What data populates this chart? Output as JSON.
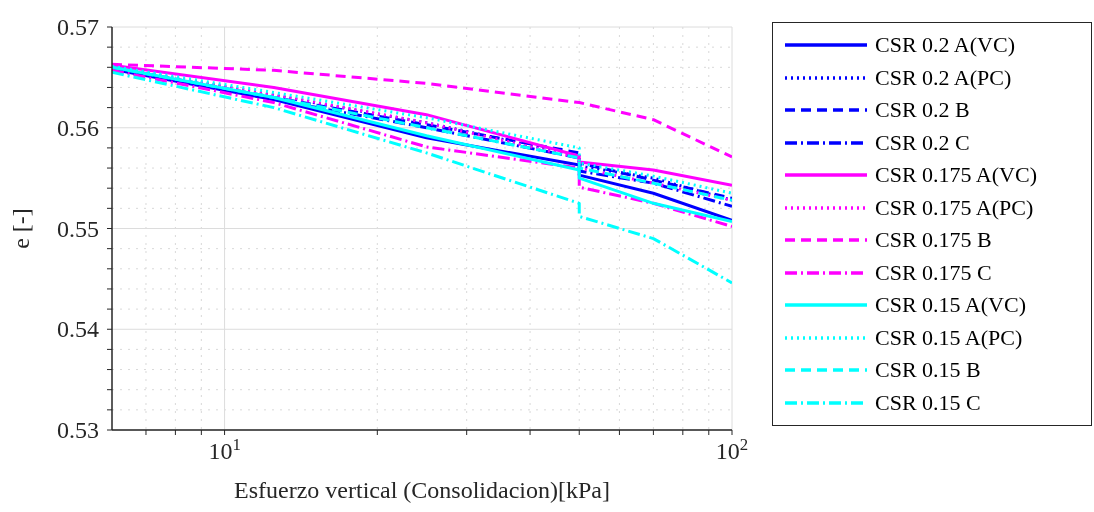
{
  "chart_data": {
    "type": "line",
    "xlabel": "Esfuerzo vertical (Consolidacion)[kPa]",
    "ylabel": "e [-]",
    "log": "x",
    "xlim": [
      6,
      100
    ],
    "ylim": [
      0.53,
      0.57
    ],
    "xticks": [
      {
        "value": 7,
        "label": null
      },
      {
        "value": 8,
        "label": null
      },
      {
        "value": 9,
        "label": null
      },
      {
        "value": 10,
        "label": "10$^{1}$"
      },
      {
        "value": 20,
        "label": null
      },
      {
        "value": 30,
        "label": null
      },
      {
        "value": 40,
        "label": null
      },
      {
        "value": 50,
        "label": null
      },
      {
        "value": 60,
        "label": null
      },
      {
        "value": 70,
        "label": null
      },
      {
        "value": 80,
        "label": null
      },
      {
        "value": 90,
        "label": null
      },
      {
        "value": 100,
        "label": "10$^{2}$"
      }
    ],
    "yticks": [
      0.53,
      {
        "value": 0.532,
        "label": null
      },
      {
        "value": 0.534,
        "label": null
      },
      {
        "value": 0.536,
        "label": null
      },
      {
        "value": 0.538,
        "label": null
      },
      0.54,
      {
        "value": 0.542,
        "label": null
      },
      {
        "value": 0.544,
        "label": null
      },
      {
        "value": 0.546,
        "label": null
      },
      {
        "value": 0.548,
        "label": null
      },
      0.55,
      {
        "value": 0.552,
        "label": null
      },
      {
        "value": 0.554,
        "label": null
      },
      {
        "value": 0.556,
        "label": null
      },
      {
        "value": 0.558,
        "label": null
      },
      0.56,
      {
        "value": 0.562,
        "label": null
      },
      {
        "value": 0.564,
        "label": null
      },
      {
        "value": 0.566,
        "label": null
      },
      {
        "value": 0.568,
        "label": null
      },
      0.57
    ],
    "grid": true,
    "legend": "right",
    "marker": "none",
    "x": [
      6,
      12.5,
      25,
      50,
      50,
      70,
      100
    ],
    "series": [
      {
        "name": "CSR 0.2 A(VC)",
        "color": "#0000ff",
        "line_style": "solid",
        "values": [
          0.5658,
          0.5628,
          0.559,
          0.5563,
          0.5553,
          0.5535,
          0.5508
        ]
      },
      {
        "name": "CSR 0.2 A(PC)",
        "color": "#0000ff",
        "line_style": "dotted",
        "values": [
          0.566,
          0.5632,
          0.5605,
          0.5572,
          0.5562,
          0.555,
          0.5528
        ]
      },
      {
        "name": "CSR 0.2 B",
        "color": "#0000ff",
        "line_style": "dashed",
        "values": [
          0.566,
          0.563,
          0.5603,
          0.5575,
          0.5565,
          0.5548,
          0.553
        ]
      },
      {
        "name": "CSR 0.2 C",
        "color": "#0000ff",
        "line_style": "dashdot",
        "values": [
          0.5658,
          0.5628,
          0.56,
          0.557,
          0.5557,
          0.5545,
          0.5522
        ]
      },
      {
        "name": "CSR 0.175 A(VC)",
        "color": "#ff00ff",
        "line_style": "solid",
        "values": [
          0.5662,
          0.564,
          0.5613,
          0.5572,
          0.5566,
          0.5558,
          0.5543
        ]
      },
      {
        "name": "CSR 0.175 A(PC)",
        "color": "#ff00ff",
        "line_style": "dotted",
        "values": [
          0.566,
          0.5633,
          0.5605,
          0.557,
          0.556,
          0.5545,
          0.5528
        ]
      },
      {
        "name": "CSR 0.175 B",
        "color": "#ff00ff",
        "line_style": "dashed",
        "values": [
          0.5663,
          0.5657,
          0.5644,
          0.5625,
          0.5625,
          0.5608,
          0.5571
        ]
      },
      {
        "name": "CSR 0.175 C",
        "color": "#ff00ff",
        "line_style": "dashdot",
        "values": [
          0.5657,
          0.5625,
          0.5581,
          0.556,
          0.5541,
          0.5525,
          0.5502
        ]
      },
      {
        "name": "CSR 0.15 A(VC)",
        "color": "#00ffff",
        "line_style": "solid",
        "values": [
          0.566,
          0.563,
          0.5592,
          0.5558,
          0.555,
          0.5525,
          0.5507
        ]
      },
      {
        "name": "CSR 0.15 A(PC)",
        "color": "#00ffff",
        "line_style": "dotted",
        "values": [
          0.5661,
          0.5635,
          0.561,
          0.558,
          0.5565,
          0.5552,
          0.5535
        ]
      },
      {
        "name": "CSR 0.15 B",
        "color": "#00ffff",
        "line_style": "dashed",
        "values": [
          0.566,
          0.563,
          0.56,
          0.557,
          0.556,
          0.5545,
          0.5528
        ]
      },
      {
        "name": "CSR 0.15 C",
        "color": "#00ffff",
        "line_style": "dashdot",
        "values": [
          0.5655,
          0.562,
          0.5575,
          0.5525,
          0.5512,
          0.549,
          0.5446
        ]
      }
    ]
  }
}
